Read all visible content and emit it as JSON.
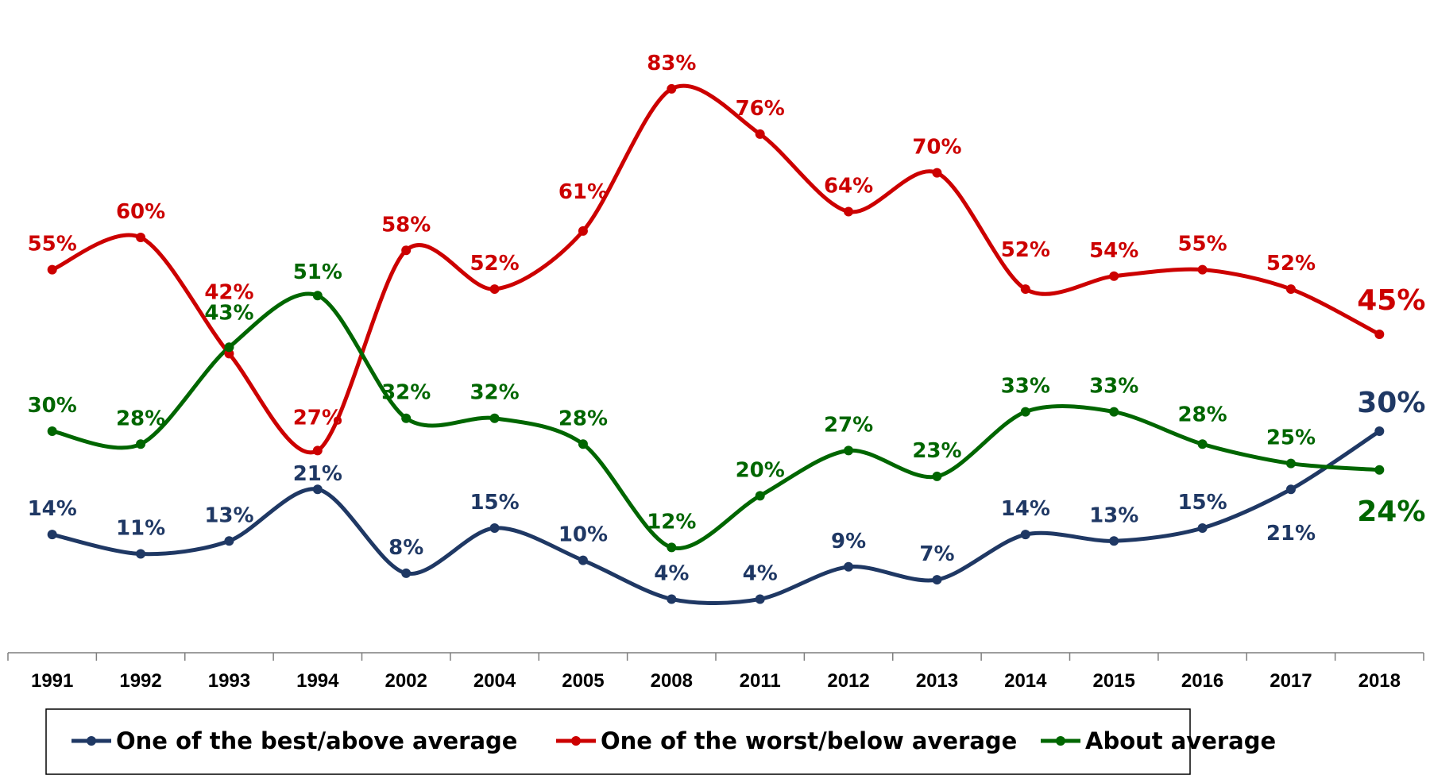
{
  "chart_data": {
    "type": "line",
    "categories": [
      "1991",
      "1992",
      "1993",
      "1994",
      "2002",
      "2004",
      "2005",
      "2008",
      "2011",
      "2012",
      "2013",
      "2014",
      "2015",
      "2016",
      "2017",
      "2018"
    ],
    "ylim": [
      0,
      90
    ],
    "grid": false,
    "legend_position": "bottom",
    "series": [
      {
        "name": "One of the best/above average",
        "color": "#1F3864",
        "values": [
          14,
          11,
          13,
          21,
          8,
          15,
          10,
          4,
          4,
          9,
          7,
          14,
          13,
          15,
          21,
          30
        ],
        "labels": [
          "14%",
          "11%",
          "13%",
          "21%",
          "8%",
          "15%",
          "10%",
          "4%",
          "4%",
          "9%",
          "7%",
          "14%",
          "13%",
          "15%",
          "21%",
          "30%"
        ]
      },
      {
        "name": "One of the worst/below average",
        "color": "#CC0000",
        "values": [
          55,
          60,
          42,
          27,
          58,
          52,
          61,
          83,
          76,
          64,
          70,
          52,
          54,
          55,
          52,
          45
        ],
        "labels": [
          "55%",
          "60%",
          "42%",
          "27%",
          "58%",
          "52%",
          "61%",
          "83%",
          "76%",
          "64%",
          "70%",
          "52%",
          "54%",
          "55%",
          "52%",
          "45%"
        ]
      },
      {
        "name": "About average",
        "color": "#006600",
        "values": [
          30,
          28,
          43,
          51,
          32,
          32,
          28,
          12,
          20,
          27,
          23,
          33,
          33,
          28,
          25,
          24
        ],
        "labels": [
          "30%",
          "28%",
          "43%",
          "51%",
          "32%",
          "32%",
          "28%",
          "12%",
          "20%",
          "27%",
          "23%",
          "33%",
          "33%",
          "28%",
          "25%",
          "24%"
        ]
      }
    ]
  }
}
